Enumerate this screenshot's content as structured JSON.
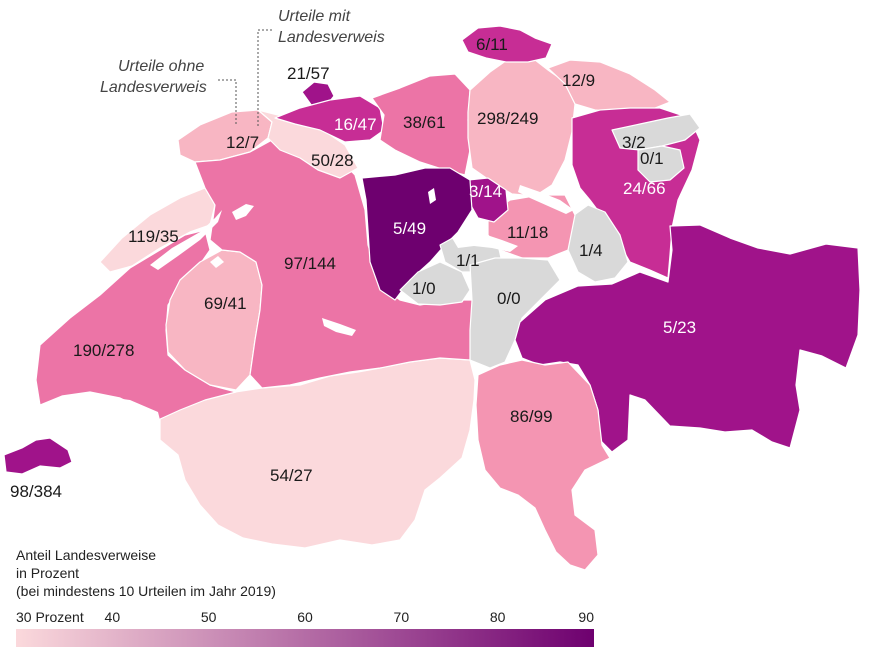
{
  "legend": {
    "title_line1": "Anteil Landesverweise",
    "title_line2": "in Prozent",
    "title_line3": "(bei mindestens 10 Urteilen im Jahr 2019)",
    "ticks": [
      {
        "value": 30,
        "label": "30 Prozent"
      },
      {
        "value": 40,
        "label": "40"
      },
      {
        "value": 50,
        "label": "50"
      },
      {
        "value": 60,
        "label": "60"
      },
      {
        "value": 70,
        "label": "70"
      },
      {
        "value": 80,
        "label": "80"
      },
      {
        "value": 90,
        "label": "90"
      }
    ],
    "color_start": "#fbd9dc",
    "color_end": "#6e006f"
  },
  "annotations": {
    "ohne_line1": "Urteile ohne",
    "ohne_line2": "Landesverweis",
    "mit_line1": "Urteile mit",
    "mit_line2": "Landesverweis"
  },
  "colors": {
    "no_data": "#d9d9d9",
    "lightest": "#fbd9dc",
    "light": "#f8b6c3",
    "mid_light": "#f495b2",
    "mid": "#ec74a6",
    "mid_dark": "#e05a9d",
    "strong": "#c72d95",
    "dark": "#a0138a",
    "darkest": "#6e006f"
  },
  "cantons": [
    {
      "id": "sh",
      "name": "Schaffhausen",
      "label": "6/11"
    },
    {
      "id": "tg",
      "name": "Thurgau",
      "label": "12/9"
    },
    {
      "id": "bs",
      "name": "Basel-Stadt",
      "label": "21/57"
    },
    {
      "id": "bl",
      "name": "Basel-Landschaft",
      "label": "16/47"
    },
    {
      "id": "ag",
      "name": "Aargau",
      "label": "38/61"
    },
    {
      "id": "zh",
      "name": "Zürich",
      "label": "298/249"
    },
    {
      "id": "ju",
      "name": "Jura",
      "label": "12/7"
    },
    {
      "id": "so",
      "name": "Solothurn",
      "label": "50/28"
    },
    {
      "id": "ar",
      "name": "Appenzell Ausserrhoden",
      "label": "3/2"
    },
    {
      "id": "ai",
      "name": "Appenzell Innerrhoden",
      "label": "0/1"
    },
    {
      "id": "sg",
      "name": "St. Gallen",
      "label": "24/66"
    },
    {
      "id": "zg",
      "name": "Zug",
      "label": "3/14"
    },
    {
      "id": "lu",
      "name": "Luzern",
      "label": "5/49"
    },
    {
      "id": "ne",
      "name": "Neuchâtel",
      "label": "119/35"
    },
    {
      "id": "sz",
      "name": "Schwyz",
      "label": "11/18"
    },
    {
      "id": "nw",
      "name": "Nidwalden",
      "label": "1/1"
    },
    {
      "id": "gl",
      "name": "Glarus",
      "label": "1/4"
    },
    {
      "id": "be",
      "name": "Bern",
      "label": "97/144"
    },
    {
      "id": "ow",
      "name": "Obwalden",
      "label": "1/0"
    },
    {
      "id": "ur",
      "name": "Uri",
      "label": "0/0"
    },
    {
      "id": "fr",
      "name": "Fribourg",
      "label": "69/41"
    },
    {
      "id": "vd",
      "name": "Vaud",
      "label": "190/278"
    },
    {
      "id": "gr",
      "name": "Graubünden",
      "label": "5/23"
    },
    {
      "id": "ti",
      "name": "Ticino",
      "label": "86/99"
    },
    {
      "id": "ge",
      "name": "Genève",
      "label": "98/384"
    },
    {
      "id": "vs",
      "name": "Valais",
      "label": "54/27"
    }
  ]
}
